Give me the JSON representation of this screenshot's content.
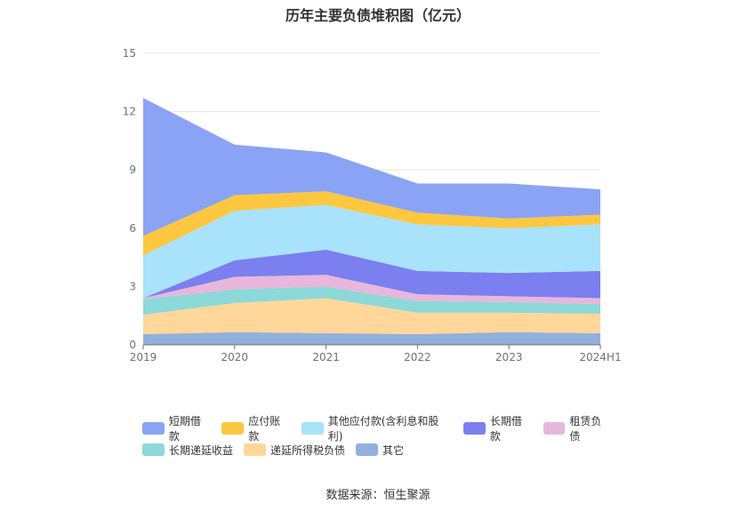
{
  "chart_data": {
    "type": "area",
    "stacked": true,
    "title": "历年主要负债堆积图（亿元）",
    "categories": [
      "2019",
      "2020",
      "2021",
      "2022",
      "2023",
      "2024H1"
    ],
    "ylim": [
      0,
      15
    ],
    "yticks": [
      "0",
      "3",
      "6",
      "9",
      "12",
      "15"
    ],
    "grid": true,
    "legend_position": "bottom",
    "series": [
      {
        "name": "其它",
        "color": "#93b0dc",
        "values": [
          0.55,
          0.65,
          0.6,
          0.55,
          0.65,
          0.6
        ]
      },
      {
        "name": "递延所得税负债",
        "color": "#ffd79a",
        "values": [
          1.0,
          1.5,
          1.8,
          1.1,
          1.0,
          1.0
        ]
      },
      {
        "name": "长期递延收益",
        "color": "#8dd8d8",
        "values": [
          0.8,
          0.7,
          0.6,
          0.6,
          0.55,
          0.5
        ]
      },
      {
        "name": "租赁负债",
        "color": "#e8b7db",
        "values": [
          0.05,
          0.65,
          0.6,
          0.35,
          0.3,
          0.3
        ]
      },
      {
        "name": "长期借款",
        "color": "#7b7ff0",
        "values": [
          0.0,
          0.85,
          1.3,
          1.2,
          1.2,
          1.4
        ]
      },
      {
        "name": "其他应付款(含利息和股利)",
        "color": "#a9e2fb",
        "values": [
          2.2,
          2.55,
          2.3,
          2.4,
          2.3,
          2.4
        ]
      },
      {
        "name": "应付账款",
        "color": "#fdc73f",
        "values": [
          1.0,
          0.8,
          0.7,
          0.6,
          0.5,
          0.5
        ]
      },
      {
        "name": "短期借款",
        "color": "#8aa3f4",
        "values": [
          7.1,
          2.6,
          2.0,
          1.5,
          1.8,
          1.3
        ]
      }
    ],
    "legend_order": [
      "短期借款",
      "应付账款",
      "其他应付款(含利息和股利)",
      "长期借款",
      "租赁负债",
      "长期递延收益",
      "递延所得税负债",
      "其它"
    ]
  },
  "source_text": "数据来源：恒生聚源"
}
